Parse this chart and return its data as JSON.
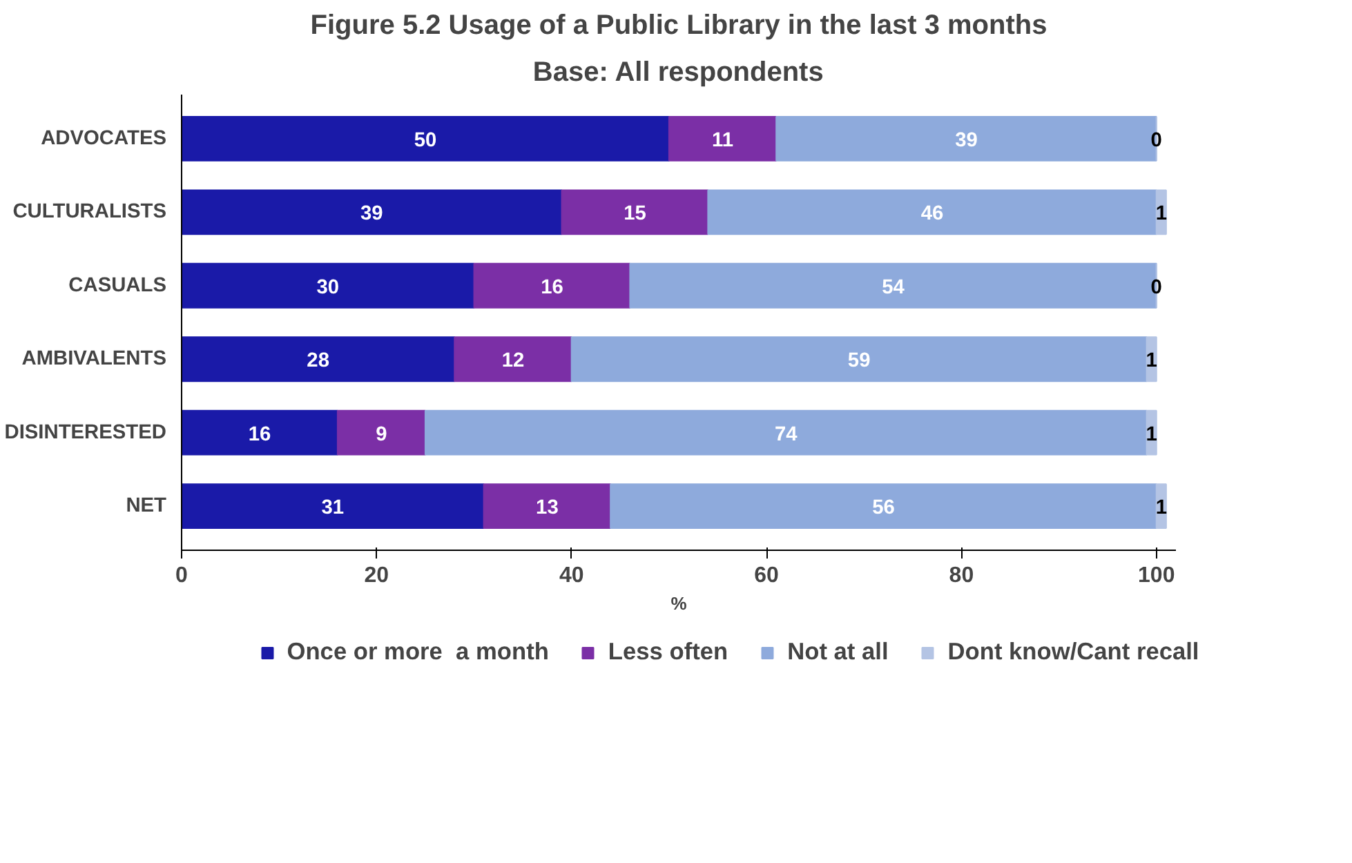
{
  "chart_data": {
    "type": "bar",
    "orientation": "horizontal",
    "stacked": true,
    "title": "Figure 5.2 Usage of a Public Library in the last 3 months",
    "subtitle": "Base: All respondents",
    "xlabel": "%",
    "categories": [
      "ADVOCATES",
      "CULTURALISTS",
      "CASUALS",
      "AMBIVALENTS",
      "DISINTERESTED",
      "NET"
    ],
    "series": [
      {
        "name": "Once or more  a month",
        "color": "#1a1aa8",
        "values": [
          50,
          39,
          30,
          28,
          16,
          31
        ]
      },
      {
        "name": "Less often",
        "color": "#7b2fa6",
        "values": [
          11,
          15,
          16,
          12,
          9,
          13
        ]
      },
      {
        "name": "Not at all",
        "color": "#8eaadc",
        "values": [
          39,
          46,
          54,
          59,
          74,
          56
        ]
      },
      {
        "name": "Dont know/Cant recall",
        "color": "#b4c4e4",
        "values": [
          0,
          1,
          0,
          1,
          1,
          1
        ]
      }
    ],
    "xlim": [
      0,
      102
    ],
    "xticks": [
      0,
      20,
      40,
      60,
      80,
      100
    ],
    "data_labels": true,
    "grid": false,
    "legend": "bottom"
  }
}
